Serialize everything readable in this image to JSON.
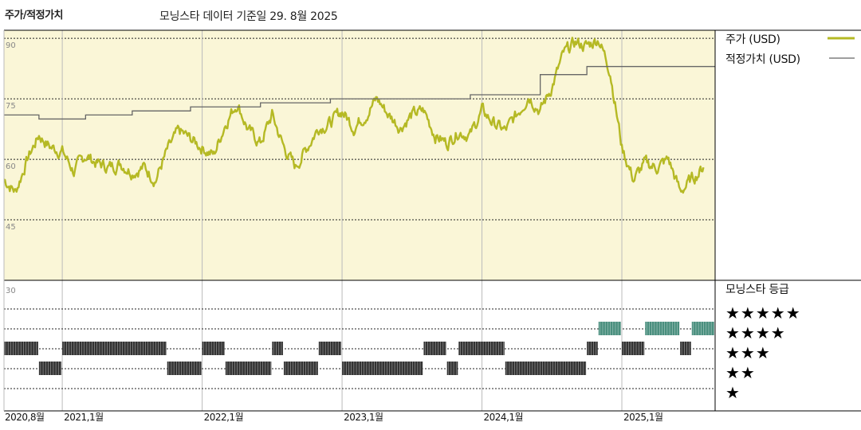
{
  "title": "주가/적정가치",
  "subtitle": "모닝스타 데이터 기준일 29. 8월 2025",
  "colors": {
    "price_line": "#b5b924",
    "fair_value_line": "#666666",
    "price_area_bg": "#faf6d7",
    "grid": "#222222",
    "rating_5": "#4a8f7e",
    "rating_other": "#333333"
  },
  "chart_data": [
    {
      "type": "line",
      "title": "주가/적정가치",
      "subtitle": "모닝스타 데이터 기준일 29. 8월 2025",
      "xlabel": "",
      "ylabel": "",
      "x_ticks": [
        "2020,8월",
        "2021,1월",
        "2022,1월",
        "2023,1월",
        "2024,1월",
        "2025,1월"
      ],
      "y_ticks": [
        90,
        75,
        60,
        45,
        30
      ],
      "ylim": [
        30,
        92
      ],
      "xlim": [
        "2020-08",
        "2025-09"
      ],
      "grid": true,
      "legend_position": "right",
      "series": [
        {
          "name": "주가 (USD)",
          "x": [
            "2020-08",
            "2020-09",
            "2020-10",
            "2020-11",
            "2020-12",
            "2021-01",
            "2021-02",
            "2021-03",
            "2021-04",
            "2021-05",
            "2021-06",
            "2021-07",
            "2021-08",
            "2021-09",
            "2021-10",
            "2021-11",
            "2021-12",
            "2022-01",
            "2022-02",
            "2022-03",
            "2022-04",
            "2022-05",
            "2022-06",
            "2022-07",
            "2022-08",
            "2022-09",
            "2022-10",
            "2022-11",
            "2022-12",
            "2023-01",
            "2023-02",
            "2023-03",
            "2023-04",
            "2023-05",
            "2023-06",
            "2023-07",
            "2023-08",
            "2023-09",
            "2023-10",
            "2023-11",
            "2023-12",
            "2024-01",
            "2024-02",
            "2024-03",
            "2024-04",
            "2024-05",
            "2024-06",
            "2024-07",
            "2024-08",
            "2024-09",
            "2024-10",
            "2024-11",
            "2024-12",
            "2025-01",
            "2025-02",
            "2025-03",
            "2025-04",
            "2025-05",
            "2025-06",
            "2025-07",
            "2025-08"
          ],
          "values": [
            55,
            52,
            60,
            66,
            63,
            62,
            57,
            61,
            59,
            58,
            59,
            57,
            58,
            55,
            62,
            67,
            65,
            63,
            61,
            69,
            74,
            67,
            64,
            71,
            63,
            58,
            63,
            68,
            69,
            72,
            68,
            71,
            75,
            71,
            68,
            71,
            72,
            66,
            64,
            67,
            66,
            72,
            69,
            67,
            71,
            76,
            72,
            78,
            86,
            89,
            88,
            90,
            82,
            63,
            55,
            59,
            58,
            60,
            52,
            55,
            58
          ]
        },
        {
          "name": "적정가치 (USD)",
          "x": [
            "2020-08",
            "2020-11",
            "2021-03",
            "2021-07",
            "2021-12",
            "2022-06",
            "2022-12",
            "2023-09",
            "2023-12",
            "2024-06",
            "2024-10",
            "2025-01",
            "2025-03",
            "2025-06",
            "2025-08"
          ],
          "values": [
            71,
            70,
            71,
            72,
            73,
            74,
            75,
            75,
            76,
            81,
            83,
            83,
            83,
            83,
            83
          ]
        }
      ]
    },
    {
      "type": "table",
      "title": "모닝스타 등급",
      "rating_labels": [
        "★★★★★",
        "★★★★",
        "★★★",
        "★★",
        "★"
      ],
      "rating_levels": [
        5,
        4,
        3,
        2,
        1
      ],
      "rating_periods": [
        {
          "from": "2020-08",
          "to": "2020-11",
          "rating": 4
        },
        {
          "from": "2020-11",
          "to": "2021-01",
          "rating": 3
        },
        {
          "from": "2021-01",
          "to": "2021-10",
          "rating": 4
        },
        {
          "from": "2021-10",
          "to": "2022-01",
          "rating": 3
        },
        {
          "from": "2022-01",
          "to": "2022-03",
          "rating": 4
        },
        {
          "from": "2022-03",
          "to": "2022-07",
          "rating": 3
        },
        {
          "from": "2022-07",
          "to": "2022-08",
          "rating": 4
        },
        {
          "from": "2022-08",
          "to": "2022-11",
          "rating": 3
        },
        {
          "from": "2022-11",
          "to": "2023-01",
          "rating": 4
        },
        {
          "from": "2023-01",
          "to": "2023-08",
          "rating": 3
        },
        {
          "from": "2023-08",
          "to": "2023-10",
          "rating": 4
        },
        {
          "from": "2023-10",
          "to": "2023-11",
          "rating": 3
        },
        {
          "from": "2023-11",
          "to": "2024-03",
          "rating": 4
        },
        {
          "from": "2024-03",
          "to": "2024-10",
          "rating": 3
        },
        {
          "from": "2024-10",
          "to": "2024-11",
          "rating": 4
        },
        {
          "from": "2024-11",
          "to": "2025-01",
          "rating": 5
        },
        {
          "from": "2025-01",
          "to": "2025-03",
          "rating": 4
        },
        {
          "from": "2025-03",
          "to": "2025-06",
          "rating": 5
        },
        {
          "from": "2025-06",
          "to": "2025-07",
          "rating": 4
        },
        {
          "from": "2025-07",
          "to": "2025-09",
          "rating": 5
        }
      ]
    }
  ]
}
